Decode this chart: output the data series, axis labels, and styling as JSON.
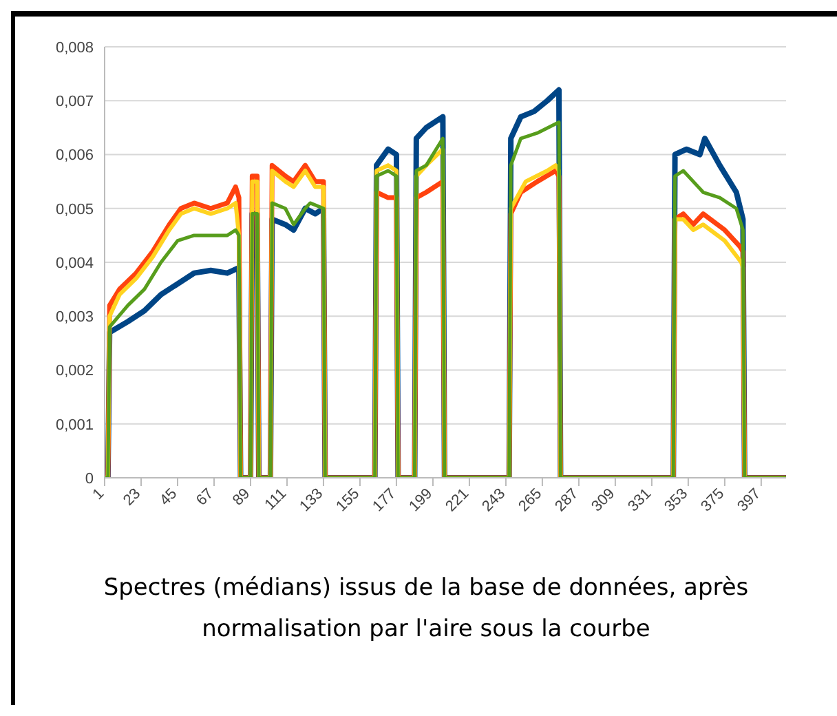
{
  "chart_data": {
    "type": "line",
    "annotations": [
      "Spectres (médians) issus de la base de données, après normalisation par l'aire sous la courbe"
    ],
    "xlim": [
      1,
      412
    ],
    "xticks": [
      1,
      23,
      45,
      67,
      89,
      111,
      133,
      155,
      177,
      199,
      221,
      243,
      265,
      287,
      309,
      331,
      353,
      375,
      397
    ],
    "ylim": [
      0,
      0.008
    ],
    "yticks": [
      0,
      {
        "value": 0.001,
        "label": "0,001"
      },
      {
        "value": 0.002,
        "label": "0,002"
      },
      {
        "value": 0.003,
        "label": "0,003"
      },
      {
        "value": 0.004,
        "label": "0,004"
      },
      {
        "value": 0.005,
        "label": "0,005"
      },
      {
        "value": 0.006,
        "label": "0,006"
      },
      {
        "value": 0.007,
        "label": "0,007"
      },
      {
        "value": 0.008,
        "label": "0,008"
      }
    ],
    "grid": "y",
    "legend": false,
    "marker": "none",
    "line_style": "solid",
    "series": [
      {
        "color": "#004586",
        "x": [
          1,
          3,
          4,
          15,
          25,
          35,
          45,
          55,
          65,
          75,
          82,
          83,
          89,
          90,
          93,
          94,
          101,
          102,
          110,
          115,
          122,
          128,
          133,
          134,
          164,
          165,
          172,
          177,
          178,
          188,
          189,
          195,
          205,
          206,
          245,
          246,
          252,
          260,
          268,
          275,
          276,
          344,
          345,
          352,
          360,
          363,
          372,
          382,
          386,
          387,
          412
        ],
        "values": [
          0,
          0,
          0.0027,
          0.0029,
          0.0031,
          0.0034,
          0.0036,
          0.0038,
          0.00385,
          0.0038,
          0.0039,
          0,
          0,
          0.0049,
          0.0049,
          0,
          0,
          0.0048,
          0.0047,
          0.0046,
          0.005,
          0.0049,
          0.005,
          0,
          0,
          0.0058,
          0.0061,
          0.006,
          0,
          0,
          0.0063,
          0.0065,
          0.0067,
          0,
          0,
          0.0063,
          0.0067,
          0.0068,
          0.007,
          0.0072,
          0,
          0,
          0.006,
          0.0061,
          0.006,
          0.0063,
          0.0058,
          0.0053,
          0.0048,
          0,
          0
        ]
      },
      {
        "color": "#ff420e",
        "x": [
          1,
          3,
          4,
          10,
          20,
          30,
          40,
          47,
          55,
          65,
          75,
          80,
          82,
          83,
          89,
          90,
          93,
          94,
          101,
          102,
          110,
          115,
          122,
          128,
          133,
          134,
          164,
          165,
          172,
          177,
          178,
          188,
          189,
          195,
          205,
          206,
          245,
          246,
          252,
          262,
          273,
          275,
          276,
          344,
          345,
          350,
          356,
          362,
          375,
          384,
          386,
          387,
          412
        ],
        "values": [
          0,
          0,
          0.0032,
          0.0035,
          0.0038,
          0.0042,
          0.0047,
          0.005,
          0.0051,
          0.005,
          0.0051,
          0.0054,
          0.0052,
          0,
          0,
          0.0056,
          0.0056,
          0,
          0,
          0.0058,
          0.0056,
          0.0055,
          0.0058,
          0.0055,
          0.0055,
          0,
          0,
          0.0053,
          0.0052,
          0.0052,
          0,
          0,
          0.0052,
          0.0053,
          0.0055,
          0,
          0,
          0.0049,
          0.0053,
          0.0055,
          0.0057,
          0.0056,
          0,
          0,
          0.0048,
          0.0049,
          0.0047,
          0.0049,
          0.0046,
          0.0043,
          0.0042,
          0,
          0
        ]
      },
      {
        "color": "#ffd320",
        "x": [
          1,
          3,
          4,
          10,
          20,
          30,
          40,
          47,
          55,
          65,
          75,
          80,
          82,
          83,
          89,
          90,
          93,
          94,
          101,
          102,
          110,
          115,
          122,
          128,
          133,
          134,
          164,
          165,
          172,
          177,
          178,
          188,
          189,
          195,
          205,
          206,
          245,
          246,
          255,
          268,
          273,
          275,
          276,
          344,
          345,
          350,
          356,
          362,
          375,
          385,
          386,
          387,
          412
        ],
        "values": [
          0,
          0,
          0.003,
          0.0034,
          0.0037,
          0.0041,
          0.0046,
          0.0049,
          0.005,
          0.0049,
          0.005,
          0.0051,
          0.0045,
          0,
          0,
          0.0055,
          0.0055,
          0,
          0,
          0.0057,
          0.0055,
          0.0054,
          0.0057,
          0.0054,
          0.0054,
          0,
          0,
          0.0057,
          0.0058,
          0.0057,
          0,
          0,
          0.0056,
          0.0058,
          0.0061,
          0,
          0,
          0.005,
          0.0055,
          0.0057,
          0.0058,
          0.0057,
          0,
          0,
          0.0048,
          0.0048,
          0.0046,
          0.0047,
          0.0044,
          0.004,
          0.0039,
          0,
          0
        ]
      },
      {
        "color": "#579d1c",
        "x": [
          1,
          3,
          4,
          15,
          25,
          35,
          45,
          55,
          65,
          75,
          80,
          82,
          83,
          89,
          90,
          93,
          94,
          101,
          102,
          110,
          115,
          122,
          125,
          133,
          134,
          164,
          165,
          172,
          177,
          178,
          188,
          189,
          195,
          205,
          206,
          245,
          246,
          252,
          262,
          275,
          276,
          344,
          345,
          350,
          362,
          372,
          382,
          386,
          387,
          412
        ],
        "values": [
          0,
          0,
          0.0028,
          0.0032,
          0.0035,
          0.004,
          0.0044,
          0.0045,
          0.0045,
          0.0045,
          0.0046,
          0.0045,
          0,
          0,
          0.0049,
          0.0049,
          0,
          0,
          0.0051,
          0.005,
          0.0047,
          0.005,
          0.0051,
          0.005,
          0,
          0,
          0.0056,
          0.0057,
          0.0056,
          0,
          0,
          0.0057,
          0.0058,
          0.0063,
          0,
          0,
          0.0058,
          0.0063,
          0.0064,
          0.0066,
          0,
          0,
          0.0056,
          0.0057,
          0.0053,
          0.0052,
          0.005,
          0.0046,
          0,
          0
        ]
      }
    ]
  }
}
